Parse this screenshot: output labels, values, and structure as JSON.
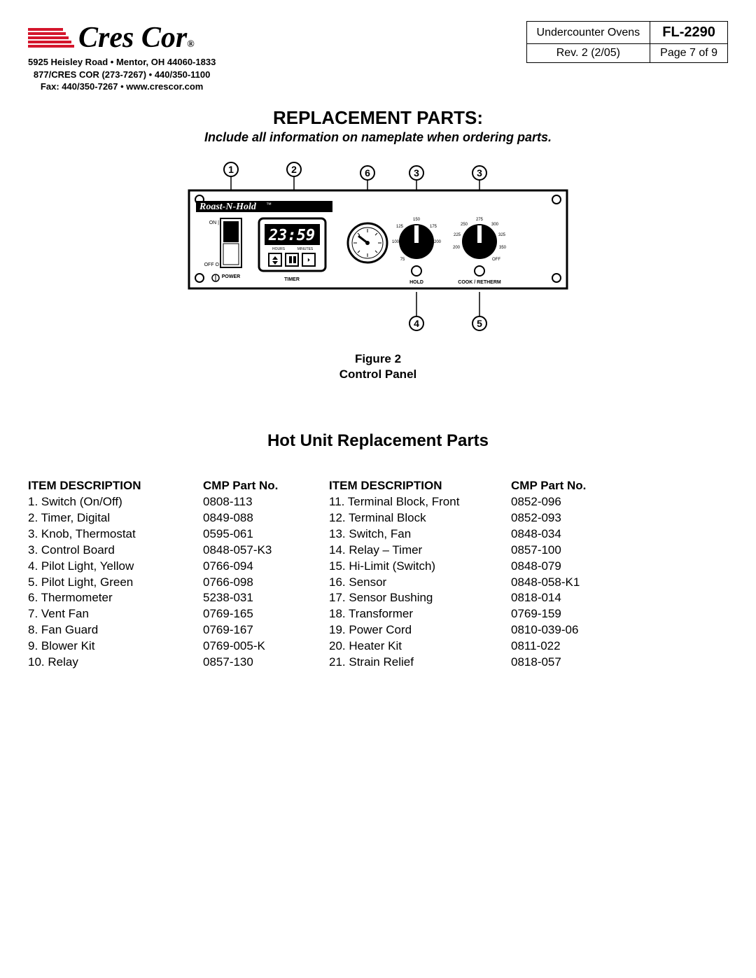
{
  "header": {
    "company_name": "Cres Cor",
    "reg": "®",
    "address_line1": "5925 Heisley Road • Mentor, OH 44060-1833",
    "address_line2": "877/CRES COR (273-7267) • 440/350-1100",
    "address_line3": "Fax: 440/350-7267 • www.crescor.com"
  },
  "info_box": {
    "product": "Undercounter Ovens",
    "model": "FL-2290",
    "revision": "Rev. 2 (2/05)",
    "page": "Page 7 of 9"
  },
  "titles": {
    "main": "REPLACEMENT PARTS:",
    "sub": "Include all information on nameplate when ordering parts.",
    "figure_line1": "Figure 2",
    "figure_line2": "Control Panel",
    "subsection": "Hot Unit Replacement Parts"
  },
  "diagram": {
    "callouts_top": [
      "1",
      "2",
      "6",
      "3",
      "3"
    ],
    "callouts_bottom": [
      "4",
      "5"
    ],
    "brand_label": "Roast-N-Hold",
    "tm": "™",
    "labels": {
      "power": "POWER",
      "timer": "TIMER",
      "hold": "HOLD",
      "cook": "COOK / RETHERM",
      "on": "ON",
      "off": "OFF",
      "hours": "HOURS",
      "minutes": "MINUTES"
    },
    "timer_digits": "23:59"
  },
  "columns": {
    "h_desc": "ITEM DESCRIPTION",
    "h_part": "CMP Part No."
  },
  "parts_left": [
    {
      "n": "1.",
      "desc": "Switch (On/Off)",
      "part": "0808-113"
    },
    {
      "n": "2.",
      "desc": "Timer, Digital",
      "part": "0849-088"
    },
    {
      "n": "3.",
      "desc": "Knob, Thermostat",
      "part": "0595-061"
    },
    {
      "n": "3.",
      "desc": "Control Board",
      "part": "0848-057-K3"
    },
    {
      "n": "4.",
      "desc": "Pilot Light, Yellow",
      "part": "0766-094"
    },
    {
      "n": "5.",
      "desc": "Pilot Light, Green",
      "part": "0766-098"
    },
    {
      "n": "6.",
      "desc": "Thermometer",
      "part": "5238-031"
    },
    {
      "n": "7.",
      "desc": "Vent Fan",
      "part": "0769-165"
    },
    {
      "n": "8.",
      "desc": "Fan Guard",
      "part": "0769-167"
    },
    {
      "n": "9.",
      "desc": "Blower Kit",
      "part": "0769-005-K"
    },
    {
      "n": "10.",
      "desc": "Relay",
      "part": "0857-130"
    }
  ],
  "parts_right": [
    {
      "n": "11.",
      "desc": "Terminal Block, Front",
      "part": "0852-096"
    },
    {
      "n": "12.",
      "desc": "Terminal Block",
      "part": "0852-093"
    },
    {
      "n": "13.",
      "desc": "Switch, Fan",
      "part": "0848-034"
    },
    {
      "n": "14.",
      "desc": "Relay – Timer",
      "part": "0857-100"
    },
    {
      "n": "15.",
      "desc": "Hi-Limit (Switch)",
      "part": "0848-079"
    },
    {
      "n": "16.",
      "desc": "Sensor",
      "part": "0848-058-K1"
    },
    {
      "n": "17.",
      "desc": "Sensor Bushing",
      "part": "0818-014"
    },
    {
      "n": "18.",
      "desc": "Transformer",
      "part": "0769-159"
    },
    {
      "n": "19.",
      "desc": "Power Cord",
      "part": "0810-039-06"
    },
    {
      "n": "20.",
      "desc": "Heater Kit",
      "part": "0811-022"
    },
    {
      "n": "21.",
      "desc": "Strain Relief",
      "part": "0818-057"
    }
  ]
}
